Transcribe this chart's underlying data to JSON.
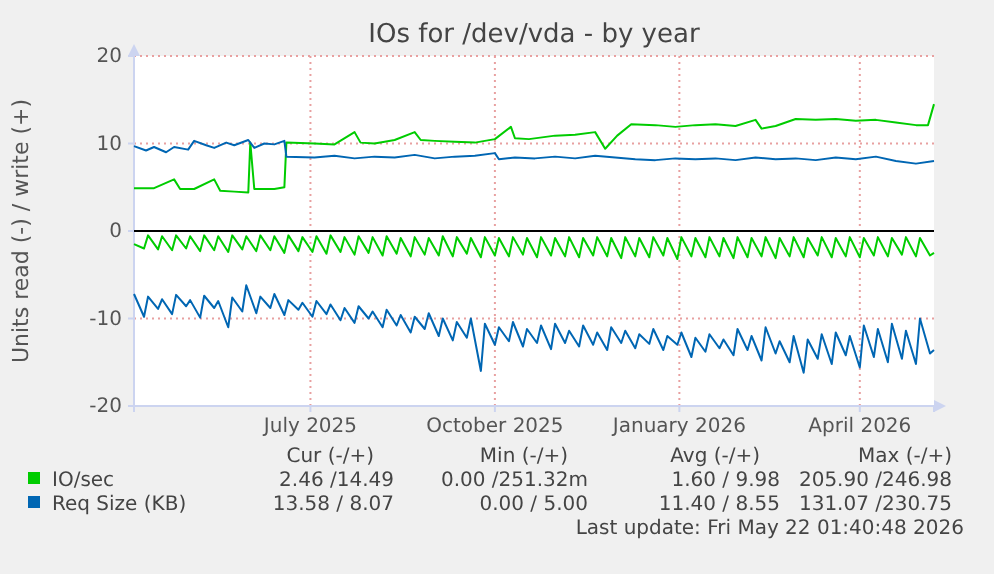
{
  "chart_data": {
    "type": "line",
    "title": "IOs for /dev/vda - by year",
    "ylabel": "Units read (-) / write (+)",
    "xlim": [
      "2025-04-04",
      "2026-05-08"
    ],
    "xticks": [
      {
        "value": "2025-07-01",
        "label": "July 2025"
      },
      {
        "value": "2025-10-01",
        "label": "October 2025"
      },
      {
        "value": "2026-01-01",
        "label": "January 2026"
      },
      {
        "value": "2026-04-01",
        "label": "April 2026"
      }
    ],
    "ylim": [
      -20,
      20
    ],
    "yticks": [
      -20,
      -10,
      0,
      10,
      20
    ],
    "grid": true,
    "legend": "bottom left",
    "marker": "none",
    "line_style": "solid",
    "x": [
      "2025-04-04",
      "2025-04-09",
      "2025-04-11",
      "2025-04-16",
      "2025-04-18",
      "2025-04-23",
      "2025-04-25",
      "2025-04-30",
      "2025-05-02",
      "2025-05-07",
      "2025-05-09",
      "2025-05-14",
      "2025-05-16",
      "2025-05-21",
      "2025-05-23",
      "2025-05-28",
      "2025-05-30",
      "2025-06-04",
      "2025-06-06",
      "2025-06-11",
      "2025-06-13",
      "2025-06-18",
      "2025-06-20",
      "2025-06-25",
      "2025-06-27",
      "2025-07-02",
      "2025-07-04",
      "2025-07-09",
      "2025-07-11",
      "2025-07-16",
      "2025-07-18",
      "2025-07-23",
      "2025-07-25",
      "2025-07-30",
      "2025-08-01",
      "2025-08-06",
      "2025-08-08",
      "2025-08-13",
      "2025-08-15",
      "2025-08-20",
      "2025-08-22",
      "2025-08-27",
      "2025-08-29",
      "2025-09-03",
      "2025-09-05",
      "2025-09-10",
      "2025-09-12",
      "2025-09-17",
      "2025-09-19",
      "2025-09-24",
      "2025-09-26",
      "2025-10-01",
      "2025-10-03",
      "2025-10-08",
      "2025-10-10",
      "2025-10-15",
      "2025-10-17",
      "2025-10-22",
      "2025-10-24",
      "2025-10-29",
      "2025-10-31",
      "2025-11-05",
      "2025-11-07",
      "2025-11-12",
      "2025-11-14",
      "2025-11-19",
      "2025-11-21",
      "2025-11-26",
      "2025-11-28",
      "2025-12-03",
      "2025-12-05",
      "2025-12-10",
      "2025-12-12",
      "2025-12-17",
      "2025-12-19",
      "2025-12-24",
      "2025-12-26",
      "2025-12-31",
      "2026-01-02",
      "2026-01-07",
      "2026-01-09",
      "2026-01-14",
      "2026-01-16",
      "2026-01-21",
      "2026-01-23",
      "2026-01-28",
      "2026-01-30",
      "2026-02-04",
      "2026-02-06",
      "2026-02-11",
      "2026-02-13",
      "2026-02-18",
      "2026-02-20",
      "2026-02-25",
      "2026-02-27",
      "2026-03-04",
      "2026-03-06",
      "2026-03-11",
      "2026-03-13",
      "2026-03-18",
      "2026-03-20",
      "2026-03-25",
      "2026-03-27",
      "2026-04-01",
      "2026-04-03",
      "2026-04-08",
      "2026-04-10",
      "2026-04-15",
      "2026-04-17",
      "2026-04-22",
      "2026-04-24",
      "2026-04-29",
      "2026-05-01",
      "2026-05-06",
      "2026-05-08"
    ],
    "series": [
      {
        "color": "#00cc00",
        "values": [
          -1.5,
          -2.0,
          -0.5,
          -2.1,
          -0.6,
          -2.2,
          -0.5,
          -2.0,
          -0.6,
          -2.3,
          -0.5,
          -2.2,
          -0.6,
          -2.4,
          -0.5,
          -2.1,
          -0.6,
          -2.3,
          -0.5,
          -2.2,
          -0.6,
          -2.5,
          -0.5,
          -2.3,
          -0.7,
          -2.4,
          -0.6,
          -2.6,
          -0.5,
          -2.4,
          -0.7,
          -2.7,
          -0.6,
          -2.5,
          -0.7,
          -2.8,
          -0.6,
          -2.6,
          -0.8,
          -2.9,
          -0.7,
          -2.7,
          -0.8,
          -2.8,
          -0.6,
          -2.9,
          -0.7,
          -2.6,
          -0.8,
          -3.0,
          -0.7,
          -2.8,
          -0.8,
          -2.9,
          -0.7,
          -2.7,
          -0.8,
          -3.0,
          -0.7,
          -2.8,
          -0.8,
          -2.9,
          -0.7,
          -3.0,
          -0.8,
          -2.8,
          -0.7,
          -2.9,
          -0.8,
          -3.1,
          -0.7,
          -2.9,
          -0.8,
          -3.0,
          -0.7,
          -2.8,
          -0.8,
          -3.2,
          -0.7,
          -2.9,
          -0.8,
          -3.0,
          -0.7,
          -2.9,
          -0.8,
          -3.1,
          -0.7,
          -3.0,
          -0.8,
          -2.9,
          -0.7,
          -3.1,
          -0.8,
          -2.9,
          -0.7,
          -3.0,
          -0.8,
          -2.8,
          -0.7,
          -3.0,
          -0.8,
          -2.9,
          -0.7,
          -3.0,
          -0.8,
          -2.8,
          -0.7,
          -2.9,
          -0.8,
          -2.7,
          -0.7,
          -2.9,
          -0.8,
          -2.8,
          -2.5
        ]
      },
      {
        "name": "IO/sec",
        "color": "#00cc00",
        "x": [
          "2025-04-04",
          "2025-04-14",
          "2025-04-24",
          "2025-04-27",
          "2025-05-04",
          "2025-05-14",
          "2025-05-17",
          "2025-05-24",
          "2025-05-31",
          "2025-06-01",
          "2025-06-03",
          "2025-06-13",
          "2025-06-18",
          "2025-06-19",
          "2025-07-03",
          "2025-07-13",
          "2025-07-23",
          "2025-07-26",
          "2025-08-02",
          "2025-08-12",
          "2025-08-22",
          "2025-08-25",
          "2025-09-01",
          "2025-09-11",
          "2025-09-21",
          "2025-10-01",
          "2025-10-09",
          "2025-10-11",
          "2025-10-18",
          "2025-10-31",
          "2025-11-10",
          "2025-11-20",
          "2025-11-25",
          "2025-12-01",
          "2025-12-08",
          "2025-12-20",
          "2025-12-30",
          "2026-01-09",
          "2026-01-19",
          "2026-01-29",
          "2026-02-08",
          "2026-02-11",
          "2026-02-18",
          "2026-02-28",
          "2026-03-10",
          "2026-03-20",
          "2026-03-30",
          "2026-04-09",
          "2026-04-19",
          "2026-04-29",
          "2026-05-05",
          "2026-05-08"
        ],
        "values": [
          4.9,
          4.9,
          5.9,
          4.8,
          4.8,
          5.9,
          4.6,
          4.5,
          4.4,
          10.1,
          4.8,
          4.8,
          5.0,
          10.1,
          10.0,
          9.9,
          11.3,
          10.1,
          10.0,
          10.4,
          11.3,
          10.4,
          10.3,
          10.2,
          10.1,
          10.5,
          11.9,
          10.6,
          10.5,
          10.9,
          11.0,
          11.3,
          9.4,
          10.9,
          12.2,
          12.1,
          11.9,
          12.1,
          12.2,
          12.0,
          12.7,
          11.7,
          12.0,
          12.8,
          12.7,
          12.8,
          12.6,
          12.7,
          12.4,
          12.1,
          12.1,
          14.5
        ]
      },
      {
        "color": "#0066b3",
        "values": [
          -7.2,
          -9.8,
          -7.5,
          -8.9,
          -7.8,
          -9.5,
          -7.3,
          -8.6,
          -7.9,
          -9.9,
          -7.4,
          -8.8,
          -8.0,
          -11.0,
          -7.6,
          -9.2,
          -6.2,
          -9.4,
          -7.5,
          -8.8,
          -7.2,
          -9.6,
          -7.9,
          -9.0,
          -8.2,
          -9.8,
          -8.0,
          -9.5,
          -8.4,
          -10.2,
          -8.8,
          -10.5,
          -8.6,
          -10.0,
          -9.2,
          -11.0,
          -9.0,
          -10.8,
          -9.6,
          -11.6,
          -9.8,
          -11.2,
          -9.4,
          -12.0,
          -10.0,
          -12.5,
          -10.4,
          -12.2,
          -10.0,
          -16.0,
          -10.6,
          -13.0,
          -11.0,
          -12.6,
          -10.4,
          -13.2,
          -11.2,
          -12.8,
          -10.8,
          -13.5,
          -10.6,
          -12.8,
          -11.4,
          -13.2,
          -10.8,
          -13.0,
          -11.6,
          -13.6,
          -11.0,
          -12.8,
          -11.4,
          -13.4,
          -11.8,
          -12.9,
          -11.2,
          -13.6,
          -12.0,
          -13.0,
          -11.6,
          -14.4,
          -12.2,
          -13.8,
          -11.8,
          -13.4,
          -12.4,
          -14.2,
          -11.2,
          -13.6,
          -12.0,
          -14.8,
          -11.0,
          -14.0,
          -12.6,
          -15.0,
          -12.0,
          -16.2,
          -12.4,
          -14.6,
          -11.8,
          -15.2,
          -11.6,
          -14.2,
          -12.0,
          -15.6,
          -10.8,
          -14.4,
          -11.2,
          -15.0,
          -10.6,
          -14.6,
          -11.4,
          -15.2,
          -10.0,
          -14.0,
          -13.6
        ]
      },
      {
        "name": "Req Size (KB)",
        "color": "#0066b3",
        "x": [
          "2025-04-04",
          "2025-04-10",
          "2025-04-14",
          "2025-04-20",
          "2025-04-24",
          "2025-05-01",
          "2025-05-04",
          "2025-05-10",
          "2025-05-14",
          "2025-05-20",
          "2025-05-24",
          "2025-05-31",
          "2025-06-03",
          "2025-06-08",
          "2025-06-13",
          "2025-06-18",
          "2025-06-19",
          "2025-07-03",
          "2025-07-13",
          "2025-07-23",
          "2025-08-02",
          "2025-08-12",
          "2025-08-22",
          "2025-09-01",
          "2025-09-11",
          "2025-09-21",
          "2025-10-01",
          "2025-10-03",
          "2025-10-11",
          "2025-10-21",
          "2025-10-31",
          "2025-11-10",
          "2025-11-20",
          "2025-11-30",
          "2025-12-10",
          "2025-12-20",
          "2025-12-30",
          "2026-01-09",
          "2026-01-19",
          "2026-01-29",
          "2026-02-08",
          "2026-02-18",
          "2026-02-28",
          "2026-03-10",
          "2026-03-20",
          "2026-03-30",
          "2026-04-09",
          "2026-04-19",
          "2026-04-29",
          "2026-05-08"
        ],
        "values": [
          9.7,
          9.2,
          9.6,
          9.0,
          9.6,
          9.3,
          10.3,
          9.8,
          9.5,
          10.1,
          9.8,
          10.4,
          9.5,
          10.0,
          9.9,
          10.3,
          8.5,
          8.4,
          8.6,
          8.3,
          8.5,
          8.4,
          8.7,
          8.3,
          8.5,
          8.6,
          8.9,
          8.2,
          8.4,
          8.3,
          8.5,
          8.3,
          8.6,
          8.4,
          8.2,
          8.1,
          8.3,
          8.2,
          8.3,
          8.1,
          8.4,
          8.2,
          8.3,
          8.1,
          8.4,
          8.2,
          8.5,
          8.0,
          7.7,
          8.0
        ]
      }
    ],
    "annotations": [
      "Cur (-/+)",
      "Min (-/+)",
      "Avg (-/+)",
      "Max (-/+)",
      "2.46 /14.49",
      "0.00 /251.32m",
      "1.60 / 9.98",
      "205.90 /246.98",
      "13.58 / 8.07",
      "0.00 / 5.00",
      "11.40 / 8.55",
      "131.07 /230.75",
      "Last update: Fri May 22 01:40:48 2026"
    ]
  }
}
